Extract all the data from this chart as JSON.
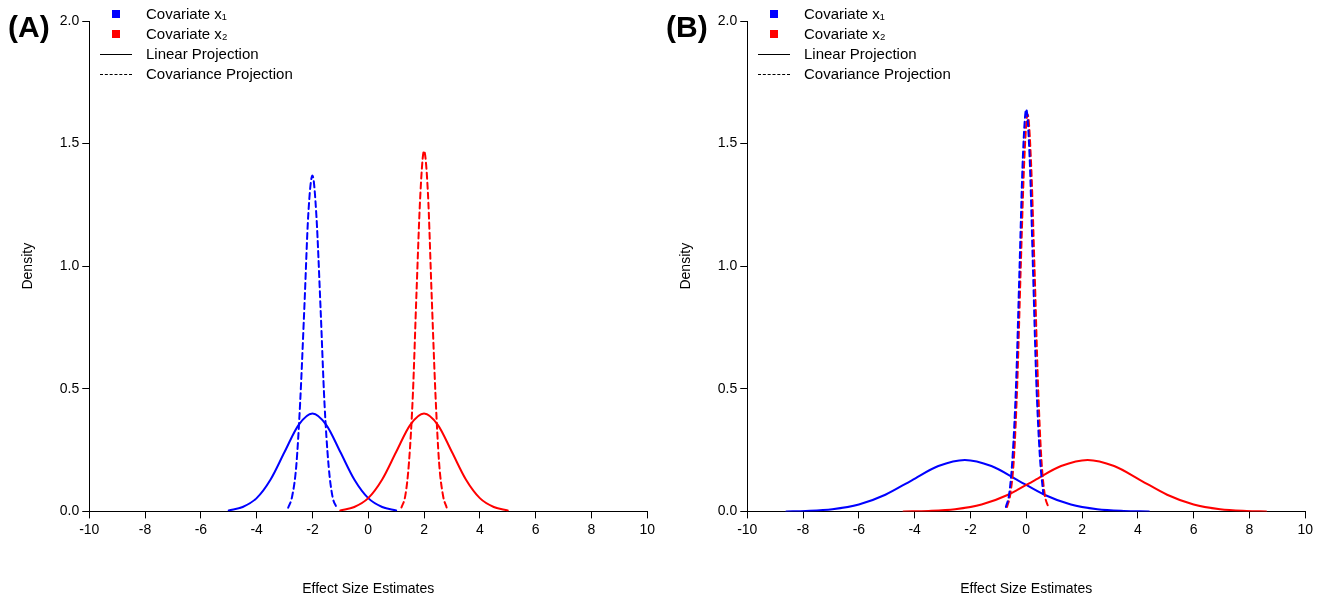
{
  "chart_data": [
    {
      "type": "line",
      "title": "(A)",
      "xlabel": "Effect Size Estimates",
      "ylabel": "Density",
      "xlim": [
        -10,
        10
      ],
      "xticks": [
        -10,
        -8,
        -6,
        -4,
        -2,
        0,
        2,
        4,
        6,
        8,
        10
      ],
      "ylim": [
        0,
        2
      ],
      "yticks": [
        {
          "value": 0,
          "label": "0.0"
        },
        {
          "value": 0.5,
          "label": "0.5"
        },
        {
          "value": 1,
          "label": "1.0"
        },
        {
          "value": 1.5,
          "label": "1.5"
        },
        {
          "value": 2,
          "label": "2.0"
        }
      ],
      "grid": false,
      "legend": "top left",
      "marker": "none",
      "annotations": [
        "Linear Projection",
        "Covariance Projection"
      ],
      "series": [
        {
          "name": "Covariate x₁",
          "color": "#0000ff",
          "line_style": "solid",
          "x": [
            -5,
            -4.5,
            -4,
            -3.5,
            -3,
            -2.5,
            -2,
            -1.5,
            -1,
            -0.5,
            0,
            0.5,
            1
          ],
          "values": [
            0.004,
            0.018,
            0.054,
            0.13,
            0.242,
            0.352,
            0.399,
            0.352,
            0.242,
            0.13,
            0.054,
            0.018,
            0.004
          ]
        },
        {
          "name": "Covariate x₂",
          "color": "#ff0000",
          "line_style": "solid",
          "x": [
            -1,
            -0.5,
            0,
            0.5,
            1,
            1.5,
            2,
            2.5,
            3,
            3.5,
            4,
            4.5,
            5
          ],
          "values": [
            0.004,
            0.018,
            0.054,
            0.13,
            0.242,
            0.352,
            0.399,
            0.352,
            0.242,
            0.13,
            0.054,
            0.018,
            0.004
          ]
        },
        {
          "color": "#0000ff",
          "line_style": "dashed",
          "x": [
            -2.87,
            -2.73,
            -2.58,
            -2.44,
            -2.29,
            -2.15,
            -2,
            -1.86,
            -1.71,
            -1.57,
            -1.42,
            -1.28,
            -1.13
          ],
          "values": [
            0.015,
            0.06,
            0.185,
            0.445,
            0.831,
            1.209,
            1.37,
            1.209,
            0.831,
            0.445,
            0.185,
            0.06,
            0.015
          ]
        },
        {
          "color": "#ff0000",
          "line_style": "dashed",
          "x": [
            1.19,
            1.33,
            1.46,
            1.6,
            1.73,
            1.87,
            2,
            2.14,
            2.27,
            2.41,
            2.54,
            2.68,
            2.81
          ],
          "values": [
            0.016,
            0.065,
            0.199,
            0.477,
            0.892,
            1.297,
            1.47,
            1.297,
            0.892,
            0.477,
            0.199,
            0.065,
            0.016
          ]
        }
      ]
    },
    {
      "type": "line",
      "title": "(B)",
      "xlabel": "Effect Size Estimates",
      "ylabel": "Density",
      "xlim": [
        -10,
        10
      ],
      "xticks": [
        -10,
        -8,
        -6,
        -4,
        -2,
        0,
        2,
        4,
        6,
        8,
        10
      ],
      "ylim": [
        0,
        2
      ],
      "yticks": [
        {
          "value": 0,
          "label": "0.0"
        },
        {
          "value": 0.5,
          "label": "0.5"
        },
        {
          "value": 1,
          "label": "1.0"
        },
        {
          "value": 1.5,
          "label": "1.5"
        },
        {
          "value": 2,
          "label": "2.0"
        }
      ],
      "grid": false,
      "legend": "top left",
      "marker": "none",
      "annotations": [
        "Linear Projection",
        "Covariance Projection"
      ],
      "series": [
        {
          "name": "Covariate x₁",
          "color": "#0000ff",
          "line_style": "solid",
          "x": [
            -8.6,
            -7.9,
            -6.95,
            -6,
            -5.05,
            -4.1,
            -3.15,
            -2.2,
            -1.25,
            -0.3,
            0.65,
            1.6,
            2.55,
            3.5,
            4.4
          ],
          "values": [
            0,
            0.002,
            0.009,
            0.028,
            0.068,
            0.127,
            0.185,
            0.21,
            0.185,
            0.127,
            0.068,
            0.028,
            0.009,
            0.002,
            0
          ]
        },
        {
          "name": "Covariate x₂",
          "color": "#ff0000",
          "line_style": "solid",
          "x": [
            -4.4,
            -3.5,
            -2.55,
            -1.6,
            -0.65,
            0.3,
            1.25,
            2.2,
            3.15,
            4.1,
            5.05,
            6,
            6.95,
            7.9,
            8.6
          ],
          "values": [
            0,
            0.002,
            0.009,
            0.028,
            0.068,
            0.127,
            0.185,
            0.21,
            0.185,
            0.127,
            0.068,
            0.028,
            0.009,
            0.002,
            0
          ]
        },
        {
          "color": "#ff0000",
          "line_style": "dashed",
          "x": [
            -0.69,
            -0.57,
            -0.44,
            -0.32,
            -0.2,
            -0.07,
            0.05,
            0.17,
            0.3,
            0.42,
            0.54,
            0.66,
            0.79
          ],
          "values": [
            0.018,
            0.071,
            0.219,
            0.526,
            0.983,
            1.43,
            1.62,
            1.43,
            0.983,
            0.526,
            0.219,
            0.071,
            0.018
          ]
        },
        {
          "color": "#0000ff",
          "line_style": "dashed",
          "x": [
            -0.73,
            -0.61,
            -0.49,
            -0.36,
            -0.24,
            -0.12,
            0,
            0.12,
            0.24,
            0.36,
            0.49,
            0.61
          ],
          "values": [
            0.018,
            0.072,
            0.222,
            0.532,
            0.995,
            1.447,
            1.64,
            1.447,
            0.995,
            0.532,
            0.222,
            0.072
          ]
        }
      ]
    }
  ]
}
